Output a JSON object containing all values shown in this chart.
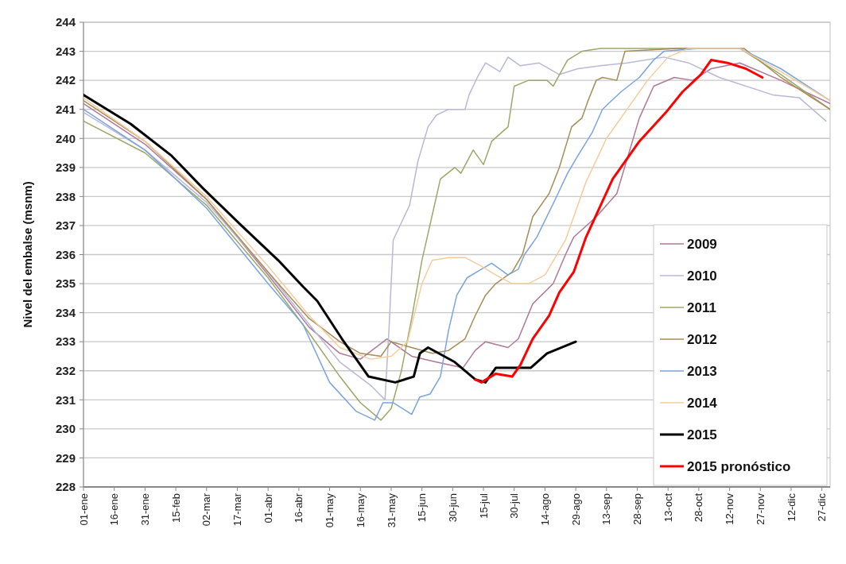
{
  "chart_data": {
    "type": "line",
    "ylabel": "Nivel del embalse (msnm)",
    "xlim": [
      "--01-01",
      "--12-31"
    ],
    "xticks": [
      {
        "value": "--01-01",
        "label": "01-ene"
      },
      {
        "value": "--01-16",
        "label": "16-ene"
      },
      {
        "value": "--01-31",
        "label": "31-ene"
      },
      {
        "value": "--02-15",
        "label": "15-feb"
      },
      {
        "value": "--03-02",
        "label": "02-mar"
      },
      {
        "value": "--03-17",
        "label": "17-mar"
      },
      {
        "value": "--04-01",
        "label": "01-abr"
      },
      {
        "value": "--04-16",
        "label": "16-abr"
      },
      {
        "value": "--05-01",
        "label": "01-may"
      },
      {
        "value": "--05-16",
        "label": "16-may"
      },
      {
        "value": "--05-31",
        "label": "31-may"
      },
      {
        "value": "--06-15",
        "label": "15-jun"
      },
      {
        "value": "--06-30",
        "label": "30-jun"
      },
      {
        "value": "--07-15",
        "label": "15-jul"
      },
      {
        "value": "--07-30",
        "label": "30-jul"
      },
      {
        "value": "--08-14",
        "label": "14-ago"
      },
      {
        "value": "--08-29",
        "label": "29-ago"
      },
      {
        "value": "--09-13",
        "label": "13-sep"
      },
      {
        "value": "--09-28",
        "label": "28-sep"
      },
      {
        "value": "--10-13",
        "label": "13-oct"
      },
      {
        "value": "--10-28",
        "label": "28-oct"
      },
      {
        "value": "--11-12",
        "label": "12-nov"
      },
      {
        "value": "--11-27",
        "label": "27-nov"
      },
      {
        "value": "--12-12",
        "label": "12-dic"
      },
      {
        "value": "--12-27",
        "label": "27-dic"
      }
    ],
    "ylim": [
      228,
      244
    ],
    "yticks": [
      228,
      229,
      230,
      231,
      232,
      233,
      234,
      235,
      236,
      237,
      238,
      239,
      240,
      241,
      242,
      243,
      244
    ],
    "grid": "y",
    "legend": "bottom right",
    "marker": "none",
    "line_style": "solid",
    "series": [
      {
        "name": "2009",
        "color": "#b07898",
        "x": [
          "--01-01",
          "--01-31",
          "--03-02",
          "--04-01",
          "--04-21",
          "--05-06",
          "--05-16",
          "--05-29",
          "--06-10",
          "--06-22",
          "--07-05",
          "--07-11",
          "--07-16",
          "--07-27",
          "--08-01",
          "--08-08",
          "--08-18",
          "--08-24",
          "--08-28",
          "--09-08",
          "--09-18",
          "--09-29",
          "--10-06",
          "--10-16",
          "--10-25",
          "--11-03",
          "--11-17",
          "--12-07",
          "--12-31"
        ],
        "values": [
          241.2,
          239.8,
          237.9,
          235.3,
          233.5,
          232.6,
          232.4,
          233.1,
          232.5,
          232.3,
          232.1,
          232.7,
          233.0,
          232.8,
          233.1,
          234.3,
          235.0,
          236.0,
          236.6,
          237.3,
          238.1,
          240.7,
          241.8,
          242.1,
          242.0,
          242.4,
          242.6,
          242.0,
          241.2
        ]
      },
      {
        "name": "2010",
        "color": "#b8b8d8",
        "x": [
          "--01-01",
          "--01-31",
          "--03-02",
          "--04-01",
          "--04-21",
          "--05-06",
          "--05-21",
          "--05-28",
          "--05-30",
          "--06-01",
          "--06-09",
          "--06-13",
          "--06-18",
          "--06-22",
          "--06-28",
          "--07-06",
          "--07-08",
          "--07-12",
          "--07-16",
          "--07-23",
          "--07-27",
          "--08-02",
          "--08-11",
          "--08-21",
          "--08-30",
          "--09-10",
          "--09-23",
          "--10-11",
          "--10-23",
          "--11-07",
          "--12-03",
          "--12-16",
          "--12-29"
        ],
        "values": [
          240.9,
          239.6,
          237.8,
          235.4,
          233.6,
          232.3,
          231.5,
          231.0,
          233.5,
          236.5,
          237.7,
          239.2,
          240.4,
          240.8,
          241.0,
          241.0,
          241.5,
          242.1,
          242.6,
          242.3,
          242.8,
          242.5,
          242.6,
          242.2,
          242.4,
          242.5,
          242.6,
          242.8,
          242.6,
          242.1,
          241.5,
          241.4,
          240.6
        ]
      },
      {
        "name": "2011",
        "color": "#9ca86a",
        "x": [
          "--01-01",
          "--01-31",
          "--03-02",
          "--04-01",
          "--04-21",
          "--05-06",
          "--05-16",
          "--05-26",
          "--05-31",
          "--06-05",
          "--06-10",
          "--06-15",
          "--06-24",
          "--07-01",
          "--07-04",
          "--07-10",
          "--07-15",
          "--07-19",
          "--07-27",
          "--07-30",
          "--08-06",
          "--08-15",
          "--08-18",
          "--08-25",
          "--09-01",
          "--09-10",
          "--10-08",
          "--11-17",
          "--12-07",
          "--12-31"
        ],
        "values": [
          240.6,
          239.5,
          237.7,
          235.2,
          233.3,
          231.8,
          230.9,
          230.3,
          230.7,
          232.0,
          233.8,
          235.8,
          238.6,
          239.0,
          238.8,
          239.6,
          239.1,
          239.9,
          240.4,
          241.8,
          242.0,
          242.0,
          241.8,
          242.7,
          243.0,
          243.1,
          243.1,
          243.1,
          242.2,
          241.0
        ]
      },
      {
        "name": "2012",
        "color": "#a88c58",
        "x": [
          "--01-01",
          "--01-31",
          "--03-02",
          "--04-01",
          "--04-21",
          "--05-06",
          "--05-16",
          "--05-26",
          "--05-31",
          "--06-10",
          "--06-20",
          "--06-28",
          "--07-06",
          "--07-11",
          "--07-16",
          "--07-21",
          "--07-29",
          "--08-03",
          "--08-08",
          "--08-16",
          "--08-21",
          "--08-27",
          "--09-01",
          "--09-04",
          "--09-08",
          "--09-11",
          "--09-18",
          "--09-22",
          "--10-18",
          "--11-19",
          "--12-07",
          "--12-31"
        ],
        "values": [
          241.3,
          239.9,
          237.9,
          235.4,
          233.8,
          233.0,
          232.6,
          232.5,
          233.0,
          232.8,
          232.6,
          232.7,
          233.1,
          233.9,
          234.6,
          235.0,
          235.4,
          236.0,
          237.3,
          238.1,
          239.0,
          240.4,
          240.7,
          241.3,
          242.0,
          242.1,
          242.0,
          243.0,
          243.1,
          243.1,
          242.1,
          241.0
        ]
      },
      {
        "name": "2013",
        "color": "#7aa4dc",
        "x": [
          "--01-01",
          "--01-31",
          "--03-02",
          "--04-01",
          "--04-18",
          "--05-01",
          "--05-14",
          "--05-23",
          "--05-27",
          "--06-01",
          "--06-10",
          "--06-14",
          "--06-19",
          "--06-24",
          "--06-28",
          "--07-02",
          "--07-07",
          "--07-14",
          "--07-19",
          "--07-27",
          "--08-01",
          "--08-04",
          "--08-10",
          "--08-19",
          "--08-25",
          "--08-30",
          "--09-06",
          "--09-11",
          "--09-20",
          "--09-29",
          "--10-06",
          "--10-11",
          "--10-28",
          "--11-17",
          "--12-07",
          "--12-31"
        ],
        "values": [
          241.0,
          239.6,
          237.6,
          235.0,
          233.6,
          231.6,
          230.6,
          230.3,
          230.9,
          230.9,
          230.5,
          231.1,
          231.2,
          231.8,
          233.4,
          234.6,
          235.2,
          235.5,
          235.7,
          235.3,
          235.5,
          236.0,
          236.6,
          237.9,
          238.8,
          239.4,
          240.2,
          241.0,
          241.6,
          242.1,
          242.7,
          243.0,
          243.1,
          243.1,
          242.4,
          241.3
        ]
      },
      {
        "name": "2014",
        "color": "#f4cc9c",
        "x": [
          "--01-01",
          "--01-31",
          "--03-02",
          "--04-01",
          "--04-21",
          "--05-06",
          "--05-21",
          "--05-31",
          "--06-08",
          "--06-15",
          "--06-20",
          "--06-28",
          "--07-06",
          "--07-14",
          "--07-21",
          "--07-29",
          "--08-06",
          "--08-14",
          "--08-24",
          "--09-03",
          "--09-13",
          "--09-23",
          "--10-03",
          "--10-13",
          "--10-23",
          "--11-17",
          "--12-07",
          "--12-31"
        ],
        "values": [
          241.4,
          239.9,
          238.0,
          235.6,
          233.9,
          232.8,
          232.4,
          232.5,
          233.0,
          235.0,
          235.8,
          235.9,
          235.9,
          235.6,
          235.3,
          235.0,
          235.0,
          235.3,
          236.5,
          238.5,
          240.0,
          241.0,
          242.0,
          242.8,
          243.1,
          243.1,
          242.3,
          241.3
        ]
      },
      {
        "name": "2015",
        "color": "#000000",
        "x": [
          "--01-01",
          "--01-24",
          "--02-13",
          "--02-28",
          "--03-19",
          "--04-06",
          "--04-18",
          "--04-25",
          "--05-07",
          "--05-14",
          "--05-20",
          "--06-02",
          "--06-11",
          "--06-14",
          "--06-18",
          "--07-01",
          "--07-11",
          "--07-16",
          "--07-21",
          "--07-29",
          "--08-07",
          "--08-15",
          "--08-29"
        ],
        "values": [
          241.5,
          240.5,
          239.4,
          238.3,
          237.0,
          235.8,
          234.9,
          234.4,
          233.1,
          232.4,
          231.8,
          231.6,
          231.8,
          232.6,
          232.8,
          232.3,
          231.7,
          231.6,
          232.1,
          232.1,
          232.1,
          232.6,
          233.0
        ]
      },
      {
        "name": "2015 pronóstico",
        "color": "#ff0000",
        "x": [
          "--07-11",
          "--07-14",
          "--07-21",
          "--07-29",
          "--08-02",
          "--08-08",
          "--08-16",
          "--08-21",
          "--08-28",
          "--09-03",
          "--09-16",
          "--09-29",
          "--10-12",
          "--10-20",
          "--10-29",
          "--11-03",
          "--11-11",
          "--11-20",
          "--11-28"
        ],
        "values": [
          231.7,
          231.6,
          231.9,
          231.8,
          232.2,
          233.1,
          233.9,
          234.7,
          235.4,
          236.6,
          238.6,
          239.9,
          240.9,
          241.6,
          242.2,
          242.7,
          242.6,
          242.4,
          242.1
        ]
      }
    ]
  }
}
